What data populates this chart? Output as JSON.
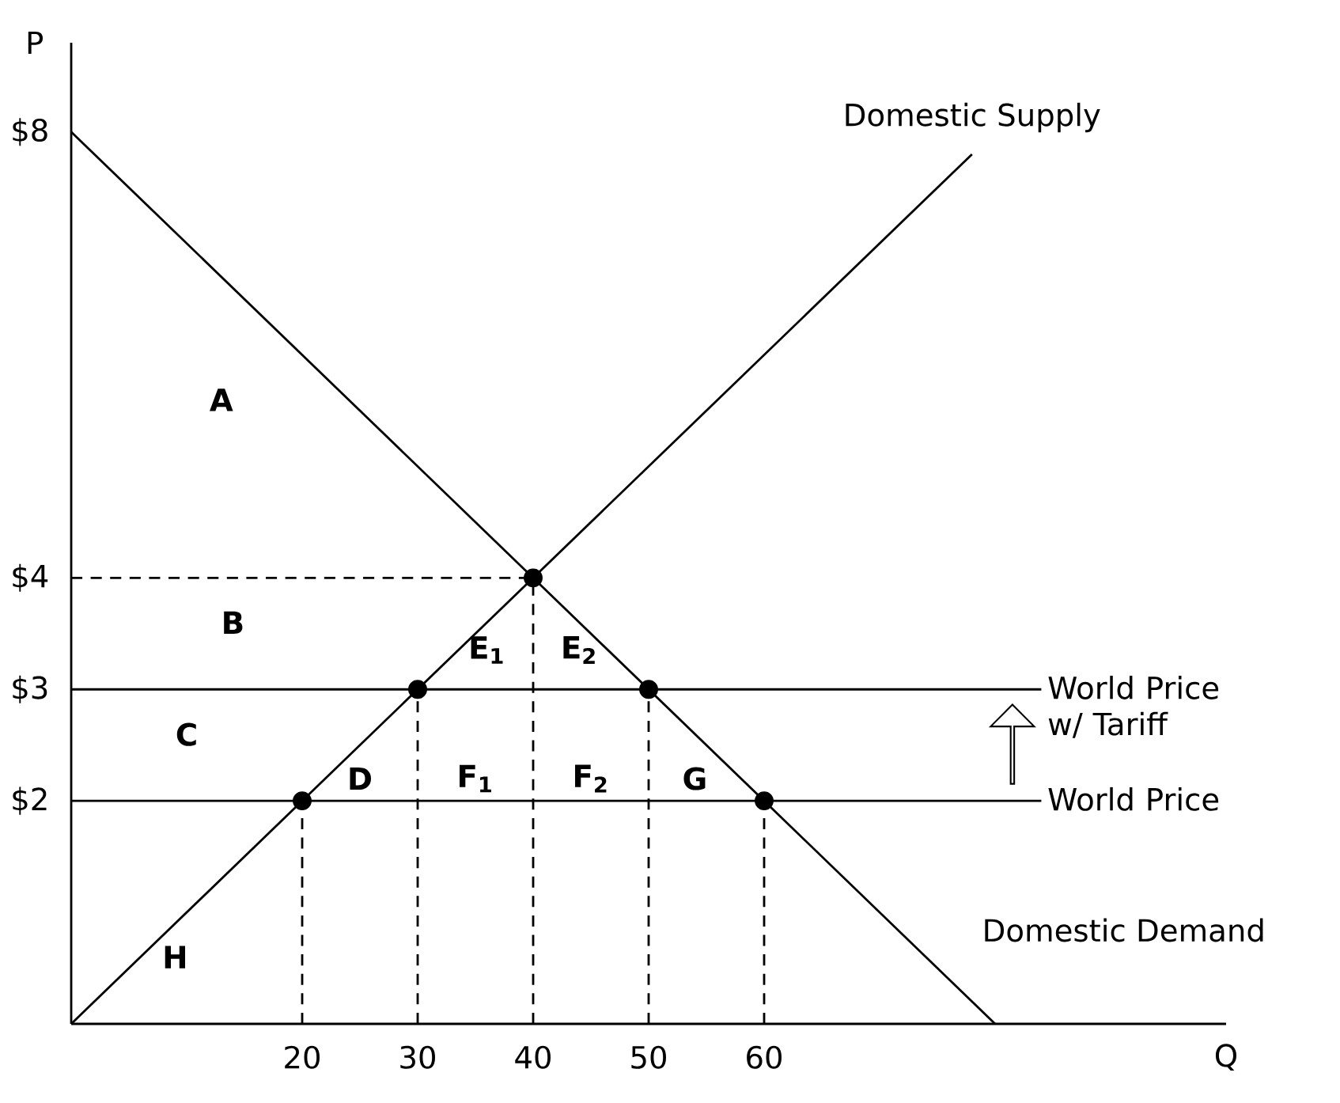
{
  "chart_data": {
    "type": "line",
    "xlabel": "Q",
    "ylabel": "P",
    "xlim": [
      0,
      100
    ],
    "ylim": [
      0,
      8.8
    ],
    "xticks": [
      20,
      30,
      40,
      50,
      60
    ],
    "yticks": [
      {
        "value": 2,
        "label": "$2"
      },
      {
        "value": 3,
        "label": "$3"
      },
      {
        "value": 4,
        "label": "$4"
      },
      {
        "value": 8,
        "label": "$8"
      }
    ],
    "series": [
      {
        "name": "Domestic Supply",
        "color": "#000000",
        "x": [
          0,
          78
        ],
        "values": [
          0,
          7.8
        ]
      },
      {
        "name": "Domestic Demand",
        "color": "#000000",
        "x": [
          0,
          80
        ],
        "values": [
          8,
          0
        ]
      },
      {
        "color": "#000000",
        "line_style": "dashed",
        "x": [
          0,
          40
        ],
        "values": [
          4,
          4
        ]
      },
      {
        "color": "#000000",
        "line_style": "dashed",
        "x": [
          20,
          20
        ],
        "values": [
          0,
          2
        ]
      },
      {
        "color": "#000000",
        "line_style": "dashed",
        "x": [
          30,
          30
        ],
        "values": [
          0,
          3
        ]
      },
      {
        "color": "#000000",
        "line_style": "dashed",
        "x": [
          40,
          40
        ],
        "values": [
          0,
          4
        ]
      },
      {
        "color": "#000000",
        "line_style": "dashed",
        "x": [
          50,
          50
        ],
        "values": [
          0,
          3
        ]
      },
      {
        "color": "#000000",
        "line_style": "dashed",
        "x": [
          60,
          60
        ],
        "values": [
          0,
          2
        ]
      },
      {
        "type": "scatter",
        "marker": "circle",
        "color": "#000000",
        "x": [
          20,
          30,
          40,
          50,
          60
        ],
        "values": [
          2,
          3,
          4,
          3,
          2
        ]
      }
    ],
    "ref_lines": [
      {
        "axis": "y",
        "value": 2,
        "label": "World Price",
        "color": "#000000"
      },
      {
        "axis": "y",
        "value": 3,
        "label": "World Price w/ Tariff",
        "color": "#000000"
      }
    ],
    "annotations": [
      "A",
      "B",
      "C",
      "D",
      "E$_{1}$",
      "E$_{2}$",
      "F$_{1}$",
      "F$_{2}$",
      "G",
      "H"
    ]
  }
}
